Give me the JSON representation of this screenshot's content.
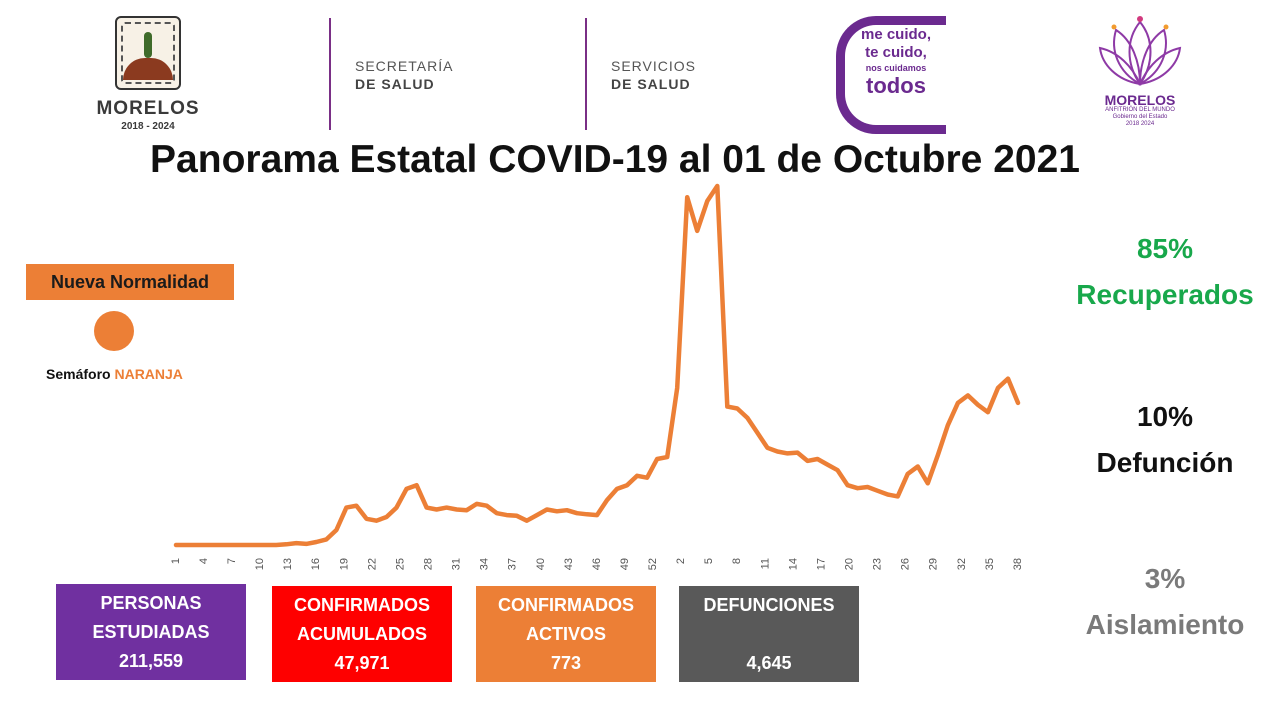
{
  "header": {
    "morelos_name": "MORELOS",
    "morelos_years": "2018 - 2024",
    "agency1_line1": "SECRETARÍA",
    "agency1_line2": "DE SALUD",
    "agency2_line1": "SERVICIOS",
    "agency2_line2": "DE SALUD",
    "slogan_line1": "me cuido,",
    "slogan_line2": "te cuido,",
    "slogan_line3": "nos cuidamos",
    "slogan_line4": "todos",
    "logo2_name": "MORELOS",
    "logo2_sub1": "ANFITRIÓN DEL MUNDO",
    "logo2_sub2": "Gobierno del Estado",
    "logo2_sub3": "2018 2024"
  },
  "title": "Panorama Estatal COVID-19 al 01 de Octubre 2021",
  "semaforo": {
    "badge": "Nueva Normalidad",
    "label": "Semáforo",
    "color_word": "NARANJA",
    "color": "#ec7f36"
  },
  "stats": {
    "recuperados_pct": "85%",
    "recuperados_label": "Recuperados",
    "defuncion_pct": "10%",
    "defuncion_label": "Defunción",
    "aislamiento_pct": "3%",
    "aislamiento_label": "Aislamiento"
  },
  "boxes": {
    "estudiadas_l1": "PERSONAS",
    "estudiadas_l2": "ESTUDIADAS",
    "estudiadas_val": "211,559",
    "acumulados_l1": "CONFIRMADOS",
    "acumulados_l2": "ACUMULADOS",
    "acumulados_val": "47,971",
    "activos_l1": "CONFIRMADOS",
    "activos_l2": "ACTIVOS",
    "activos_val": "773",
    "defunciones_l1": "DEFUNCIONES",
    "defunciones_val": "4,645"
  },
  "chart_data": {
    "type": "line",
    "title": "",
    "xlabel": "",
    "ylabel": "",
    "color": "#ec7f36",
    "grid": false,
    "tick_labels": [
      "1",
      "4",
      "7",
      "10",
      "13",
      "16",
      "19",
      "22",
      "25",
      "28",
      "31",
      "34",
      "37",
      "40",
      "43",
      "46",
      "49",
      "52",
      "2",
      "5",
      "8",
      "11",
      "14",
      "17",
      "20",
      "23",
      "26",
      "29",
      "32",
      "35",
      "38"
    ],
    "values": [
      0,
      0,
      0,
      0,
      0,
      0,
      0,
      0,
      0,
      0,
      0,
      0.2,
      0.5,
      0.3,
      0.8,
      1.5,
      4,
      10,
      10.5,
      7,
      6.5,
      7.5,
      10,
      15,
      16,
      10,
      9.5,
      10,
      9.5,
      9.3,
      11,
      10.5,
      8.5,
      8,
      7.8,
      6.5,
      8,
      9.5,
      9,
      9.3,
      8.5,
      8.2,
      8,
      12,
      15,
      16,
      18.5,
      18,
      23,
      23.5,
      42,
      93,
      84,
      92,
      96,
      37,
      36.5,
      34,
      30,
      26,
      25,
      24.5,
      24.7,
      22.5,
      23,
      21.5,
      20,
      16,
      15.2,
      15.5,
      14.5,
      13.5,
      13,
      19,
      21,
      16.5,
      24,
      32,
      38,
      40,
      37.5,
      35.5,
      42,
      44.5,
      38
    ]
  }
}
